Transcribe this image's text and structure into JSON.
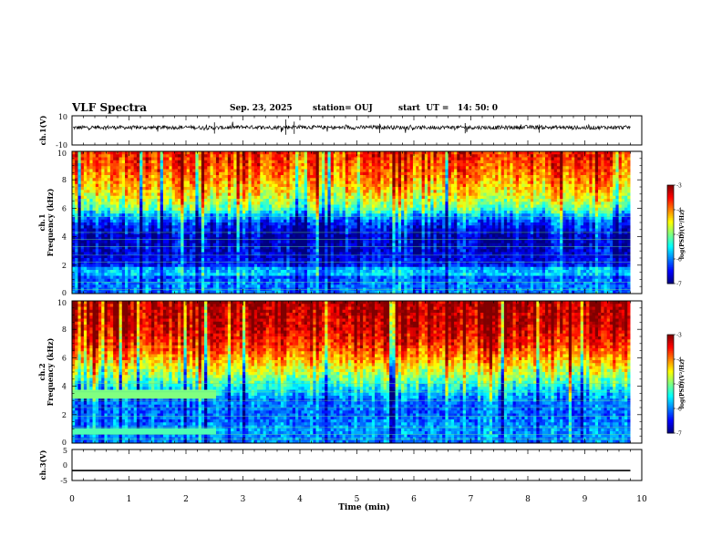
{
  "header": {
    "title": "VLF Spectra",
    "date": "Sep. 23, 2025",
    "station": "station= OUJ",
    "start": "start  UT =   14: 50: 0"
  },
  "colors": {
    "jet": [
      "#000080",
      "#0000ff",
      "#0080ff",
      "#00ffff",
      "#80ff80",
      "#ffff00",
      "#ff8000",
      "#ff0000",
      "#800000"
    ]
  },
  "chart_data": [
    {
      "type": "line",
      "panel": "ch1-waveform",
      "ylabel": "ch.1(V)",
      "ytick_labels": [
        "10",
        "-10"
      ],
      "ylim": [
        -10,
        10
      ],
      "x": [
        0,
        0.5,
        1,
        1.5,
        2,
        2.5,
        3,
        3.5,
        4,
        4.5,
        5,
        5.5,
        6,
        6.5,
        7,
        7.5,
        8,
        8.5,
        9,
        9.5,
        9.8
      ],
      "values": [
        1.8,
        2.2,
        1.9,
        2.0,
        2.1,
        1.7,
        2.3,
        2.0,
        2.4,
        1.9,
        2.0,
        2.2,
        1.8,
        2.1,
        2.0,
        1.9,
        2.2,
        2.0,
        1.8,
        2.1,
        2.0
      ],
      "spikes": [
        [
          2.5,
          5.5
        ],
        [
          3.75,
          7.5
        ],
        [
          3.9,
          6.0
        ],
        [
          5.4,
          4.5
        ],
        [
          6.9,
          5.0
        ],
        [
          8.2,
          4.0
        ]
      ]
    },
    {
      "type": "heatmap",
      "panel": "ch1-spectrogram",
      "ylabel_top": "ch.1",
      "ylabel": "Frequency (kHz)",
      "ytick_labels": [
        "0",
        "2",
        "4",
        "6",
        "8",
        "10"
      ],
      "ylim": [
        0,
        10
      ],
      "xlim": [
        0,
        9.8
      ],
      "colorbar": {
        "label": "log(PSD)(V²/Hz)",
        "tick_labels": [
          "-3",
          "-4",
          "-5",
          "-6",
          "-7"
        ],
        "range": [
          -7,
          -3
        ]
      },
      "profile": {
        "freq_khz": [
          0,
          1,
          2,
          3,
          4,
          5,
          5.5,
          6,
          7,
          8,
          9,
          10
        ],
        "log_psd": [
          -6.0,
          -6.1,
          -6.4,
          -6.7,
          -6.8,
          -6.3,
          -5.8,
          -5.1,
          -4.5,
          -4.1,
          -3.8,
          -3.6
        ]
      }
    },
    {
      "type": "heatmap",
      "panel": "ch2-spectrogram",
      "ylabel_top": "ch.2",
      "ylabel": "Frequency (kHz)",
      "ytick_labels": [
        "0",
        "2",
        "4",
        "6",
        "8",
        "10"
      ],
      "ylim": [
        0,
        10
      ],
      "xlim": [
        0,
        9.8
      ],
      "colorbar": {
        "label": "log(PSD)(V²/Hz)",
        "tick_labels": [
          "-3",
          "-4",
          "-5",
          "-6",
          "-7"
        ],
        "range": [
          -7,
          -3
        ]
      },
      "profile": {
        "freq_khz": [
          0,
          1,
          2,
          3,
          4,
          5,
          6,
          7,
          8,
          9,
          10
        ],
        "log_psd": [
          -6.0,
          -5.9,
          -6.1,
          -6.0,
          -5.4,
          -4.7,
          -4.1,
          -3.6,
          -3.3,
          -3.2,
          -3.1
        ]
      }
    },
    {
      "type": "line",
      "panel": "ch3-waveform",
      "ylabel": "ch.3(V)",
      "ytick_labels": [
        "5",
        "0",
        "-5"
      ],
      "ylim": [
        -5,
        5
      ],
      "x": [
        0,
        9.8
      ],
      "values": [
        -1.8,
        -1.8
      ]
    }
  ],
  "xaxis": {
    "label": "Time (min)",
    "tick_labels": [
      "0",
      "1",
      "2",
      "3",
      "4",
      "5",
      "6",
      "7",
      "8",
      "9",
      "10"
    ],
    "xlim": [
      0,
      10
    ]
  }
}
